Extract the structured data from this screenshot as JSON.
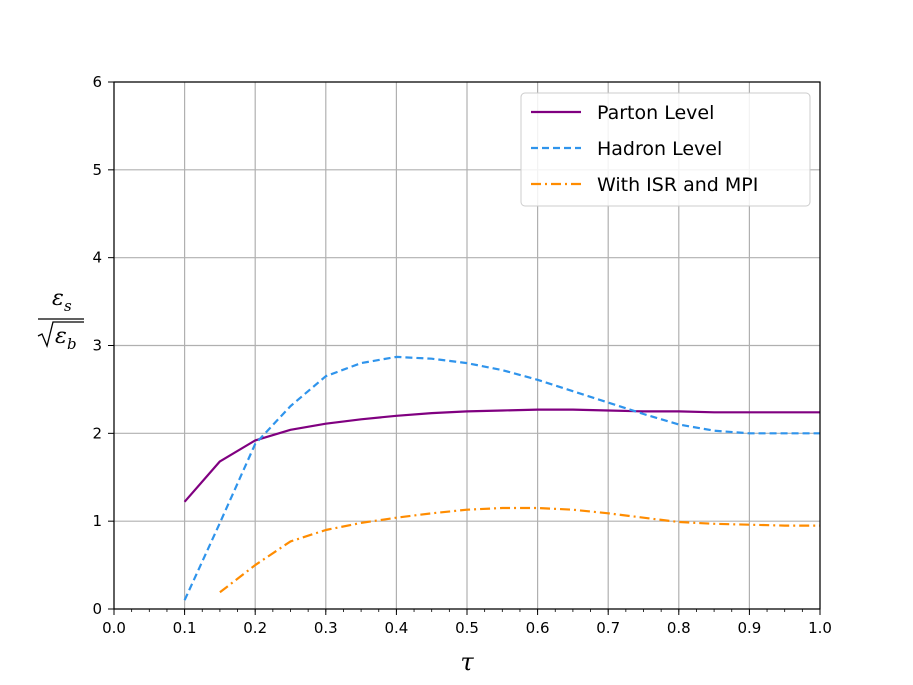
{
  "chart_data": {
    "type": "line",
    "xlabel": "τ",
    "ylabel": {
      "numerator": "ε",
      "numerator_sub": "s",
      "denominator": "ε",
      "denominator_sub": "b"
    },
    "xlim": [
      0.0,
      1.0
    ],
    "ylim": [
      0,
      6
    ],
    "xticks": [
      "0.0",
      "0.1",
      "0.2",
      "0.3",
      "0.4",
      "0.5",
      "0.6",
      "0.7",
      "0.8",
      "0.9",
      "1.0"
    ],
    "yticks": [
      "0",
      "1",
      "2",
      "3",
      "4",
      "5",
      "6"
    ],
    "grid": true,
    "legend_position": "top-right",
    "series": [
      {
        "name": "Parton Level",
        "color": "#800080",
        "style": "solid",
        "x": [
          0.1,
          0.15,
          0.2,
          0.25,
          0.3,
          0.35,
          0.4,
          0.45,
          0.5,
          0.55,
          0.6,
          0.65,
          0.7,
          0.75,
          0.8,
          0.85,
          0.9,
          0.95,
          1.0
        ],
        "y": [
          1.22,
          1.68,
          1.92,
          2.04,
          2.11,
          2.16,
          2.2,
          2.23,
          2.25,
          2.26,
          2.27,
          2.27,
          2.26,
          2.25,
          2.25,
          2.24,
          2.24,
          2.24,
          2.24
        ]
      },
      {
        "name": "Hadron Level",
        "color": "#2f94ec",
        "style": "dashed",
        "x": [
          0.1,
          0.15,
          0.2,
          0.25,
          0.3,
          0.35,
          0.4,
          0.45,
          0.5,
          0.55,
          0.6,
          0.65,
          0.7,
          0.75,
          0.8,
          0.85,
          0.9,
          0.95,
          1.0
        ],
        "y": [
          0.1,
          0.98,
          1.88,
          2.31,
          2.65,
          2.8,
          2.87,
          2.85,
          2.8,
          2.72,
          2.61,
          2.48,
          2.35,
          2.22,
          2.1,
          2.03,
          2.0,
          2.0,
          2.0
        ]
      },
      {
        "name": "With ISR and MPI",
        "color": "#ff8c00",
        "style": "dashdot",
        "x": [
          0.15,
          0.2,
          0.25,
          0.3,
          0.35,
          0.4,
          0.45,
          0.5,
          0.55,
          0.6,
          0.65,
          0.7,
          0.75,
          0.8,
          0.85,
          0.9,
          0.95,
          1.0
        ],
        "y": [
          0.19,
          0.5,
          0.77,
          0.9,
          0.98,
          1.04,
          1.09,
          1.13,
          1.15,
          1.15,
          1.13,
          1.09,
          1.04,
          0.99,
          0.97,
          0.96,
          0.95,
          0.95
        ]
      }
    ]
  }
}
